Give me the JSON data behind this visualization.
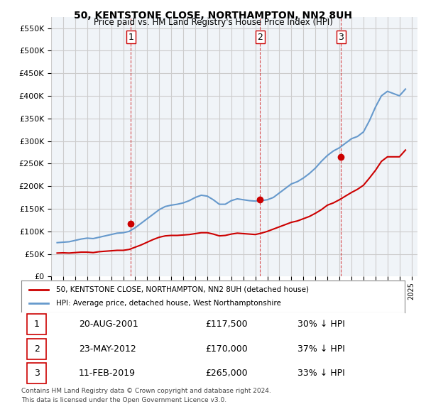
{
  "title1": "50, KENTSTONE CLOSE, NORTHAMPTON, NN2 8UH",
  "title2": "Price paid vs. HM Land Registry's House Price Index (HPI)",
  "ylabel_ticks": [
    0,
    50000,
    100000,
    150000,
    200000,
    250000,
    300000,
    350000,
    400000,
    450000,
    500000,
    550000
  ],
  "ylim": [
    0,
    575000
  ],
  "xlim_start": 1995.0,
  "xlim_end": 2025.5,
  "sales": [
    {
      "label": "1",
      "date_num": 2001.64,
      "price": 117500
    },
    {
      "label": "2",
      "date_num": 2012.39,
      "price": 170000
    },
    {
      "label": "3",
      "date_num": 2019.12,
      "price": 265000
    }
  ],
  "legend_line1": "50, KENTSTONE CLOSE, NORTHAMPTON, NN2 8UH (detached house)",
  "legend_line2": "HPI: Average price, detached house, West Northamptonshire",
  "table": [
    {
      "num": "1",
      "date": "20-AUG-2001",
      "price": "£117,500",
      "hpi": "30% ↓ HPI"
    },
    {
      "num": "2",
      "date": "23-MAY-2012",
      "price": "£170,000",
      "hpi": "37% ↓ HPI"
    },
    {
      "num": "3",
      "date": "11-FEB-2019",
      "price": "£265,000",
      "hpi": "33% ↓ HPI"
    }
  ],
  "footer1": "Contains HM Land Registry data © Crown copyright and database right 2024.",
  "footer2": "This data is licensed under the Open Government Licence v3.0.",
  "line_color_red": "#cc0000",
  "line_color_blue": "#6699cc",
  "background_color": "#f0f4f8",
  "grid_color": "#cccccc",
  "hpi_data": {
    "years": [
      1995.5,
      1996.0,
      1996.5,
      1997.0,
      1997.5,
      1998.0,
      1998.5,
      1999.0,
      1999.5,
      2000.0,
      2000.5,
      2001.0,
      2001.5,
      2002.0,
      2002.5,
      2003.0,
      2003.5,
      2004.0,
      2004.5,
      2005.0,
      2005.5,
      2006.0,
      2006.5,
      2007.0,
      2007.5,
      2008.0,
      2008.5,
      2009.0,
      2009.5,
      2010.0,
      2010.5,
      2011.0,
      2011.5,
      2012.0,
      2012.5,
      2013.0,
      2013.5,
      2014.0,
      2014.5,
      2015.0,
      2015.5,
      2016.0,
      2016.5,
      2017.0,
      2017.5,
      2018.0,
      2018.5,
      2019.0,
      2019.5,
      2020.0,
      2020.5,
      2021.0,
      2021.5,
      2022.0,
      2022.5,
      2023.0,
      2023.5,
      2024.0,
      2024.5
    ],
    "prices": [
      75000,
      76000,
      77000,
      80000,
      83000,
      85000,
      84000,
      87000,
      90000,
      93000,
      96000,
      97000,
      100000,
      108000,
      118000,
      128000,
      138000,
      148000,
      155000,
      158000,
      160000,
      163000,
      168000,
      175000,
      180000,
      178000,
      170000,
      160000,
      160000,
      168000,
      172000,
      170000,
      168000,
      167000,
      168000,
      170000,
      175000,
      185000,
      195000,
      205000,
      210000,
      218000,
      228000,
      240000,
      255000,
      268000,
      278000,
      285000,
      295000,
      305000,
      310000,
      320000,
      345000,
      375000,
      400000,
      410000,
      405000,
      400000,
      415000
    ]
  },
  "price_paid_data": {
    "years": [
      1995.5,
      1996.0,
      1996.5,
      1997.0,
      1997.5,
      1998.0,
      1998.5,
      1999.0,
      1999.5,
      2000.0,
      2000.5,
      2001.0,
      2001.5,
      2002.0,
      2002.5,
      2003.0,
      2003.5,
      2004.0,
      2004.5,
      2005.0,
      2005.5,
      2006.0,
      2006.5,
      2007.0,
      2007.5,
      2008.0,
      2008.5,
      2009.0,
      2009.5,
      2010.0,
      2010.5,
      2011.0,
      2011.5,
      2012.0,
      2012.5,
      2013.0,
      2013.5,
      2014.0,
      2014.5,
      2015.0,
      2015.5,
      2016.0,
      2016.5,
      2017.0,
      2017.5,
      2018.0,
      2018.5,
      2019.0,
      2019.5,
      2020.0,
      2020.5,
      2021.0,
      2021.5,
      2022.0,
      2022.5,
      2023.0,
      2023.5,
      2024.0,
      2024.5
    ],
    "prices": [
      52000,
      52500,
      52000,
      53000,
      54000,
      54000,
      53000,
      55000,
      56000,
      57000,
      58000,
      58000,
      60000,
      65000,
      70000,
      76000,
      82000,
      87000,
      90000,
      91000,
      91000,
      92000,
      93000,
      95000,
      97000,
      97000,
      94000,
      90000,
      91000,
      94000,
      96000,
      95000,
      94000,
      93000,
      96000,
      100000,
      105000,
      110000,
      115000,
      120000,
      123000,
      128000,
      133000,
      140000,
      148000,
      158000,
      163000,
      170000,
      178000,
      186000,
      193000,
      202000,
      218000,
      235000,
      255000,
      265000,
      265000,
      265000,
      280000
    ]
  }
}
